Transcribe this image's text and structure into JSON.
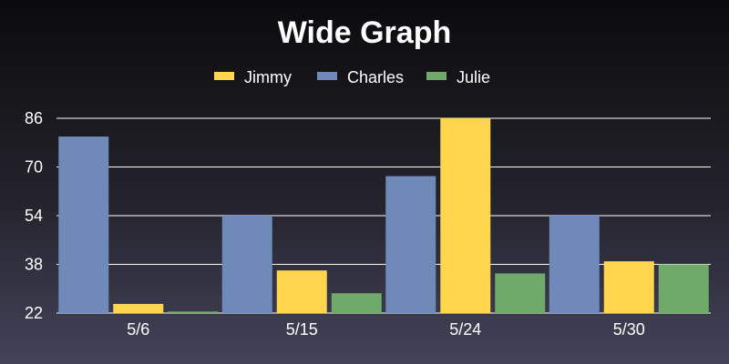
{
  "chart_data": {
    "type": "bar",
    "title": "Wide Graph",
    "xlabel": "",
    "ylabel": "",
    "categories": [
      "5/6",
      "5/15",
      "5/24",
      "5/30"
    ],
    "series": [
      {
        "name": "Jimmy",
        "color": "#ffd54d",
        "values": [
          25,
          36,
          86,
          39
        ]
      },
      {
        "name": "Charles",
        "color": "#6f8ab8",
        "values": [
          80,
          54,
          67,
          54
        ]
      },
      {
        "name": "Julie",
        "color": "#6faa6a",
        "values": [
          22.5,
          28.5,
          35,
          38
        ]
      }
    ],
    "bar_order": [
      [
        "Charles",
        "Jimmy",
        "Julie"
      ],
      [
        "Charles",
        "Jimmy",
        "Julie"
      ],
      [
        "Charles",
        "Jimmy",
        "Julie"
      ],
      [
        "Charles",
        "Jimmy",
        "Julie"
      ]
    ],
    "yticks": [
      22,
      38,
      54,
      70,
      86
    ],
    "ylim": [
      22,
      86
    ],
    "grid": true,
    "legend_position": "top-center"
  }
}
